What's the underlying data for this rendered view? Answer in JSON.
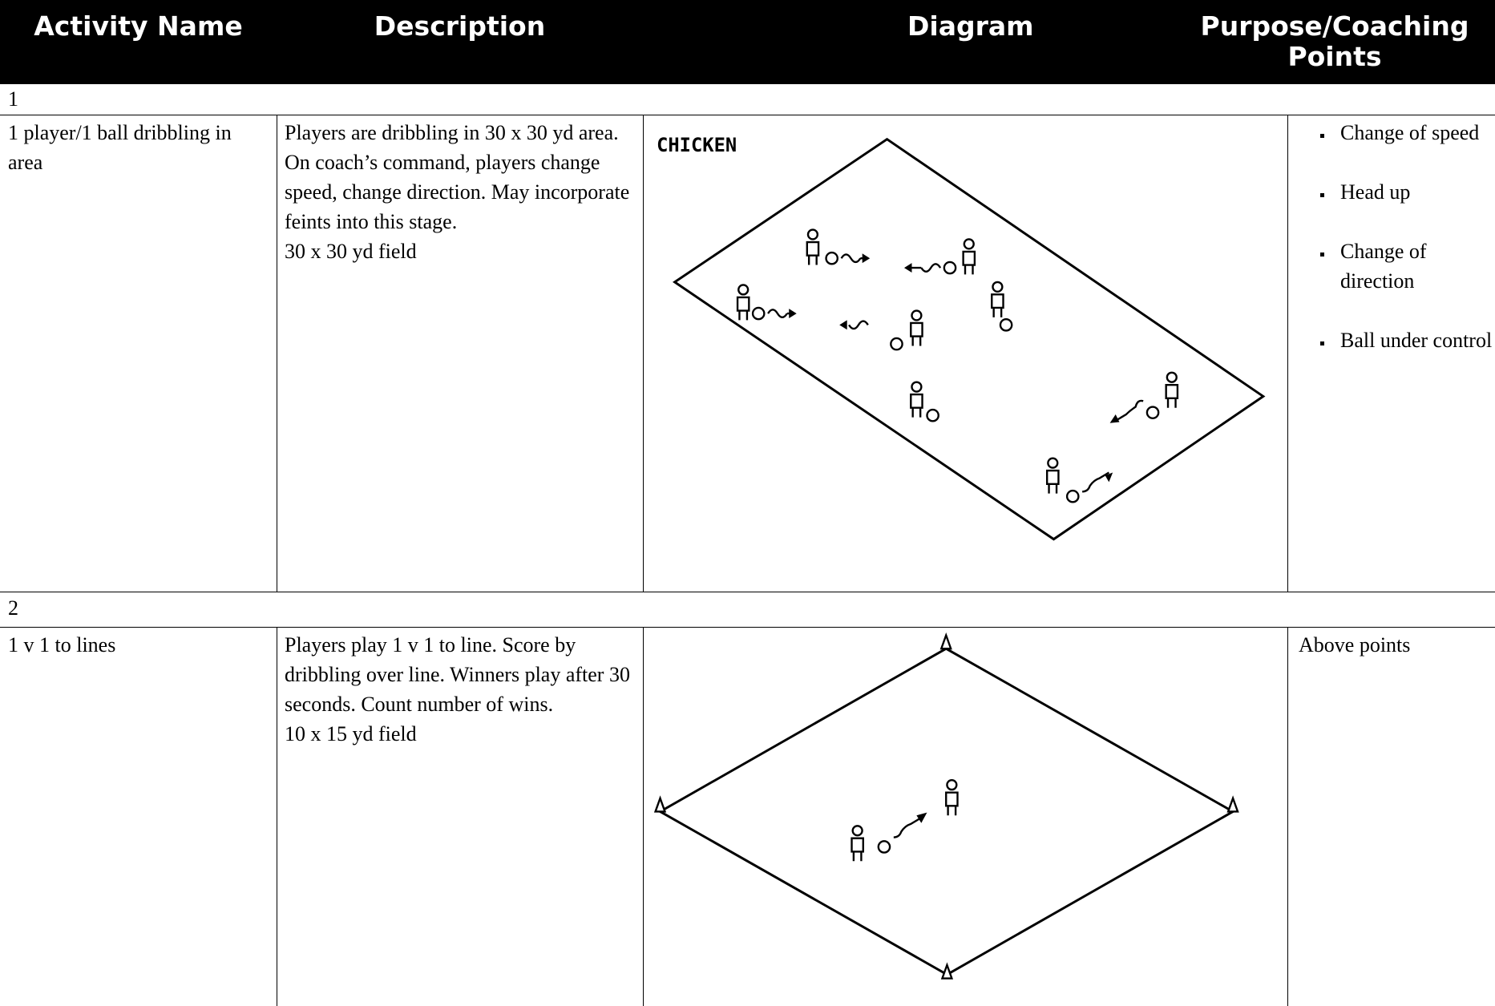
{
  "header": {
    "columns": [
      "Activity Name",
      "Description",
      "Diagram",
      "Purpose/Coaching Points"
    ]
  },
  "sections": [
    {
      "number": "1",
      "activity": "1 player/1 ball dribbling in area",
      "description": [
        "Players are dribbling in 30 x 30 yd area. On coach’s command, players change speed, change direction. May incorporate feints into this stage.",
        "30 x 30 yd field"
      ],
      "diagram_label": "CHICKEN",
      "points": [
        "Change of speed",
        "Head up",
        "Change of direction",
        "Ball under control"
      ]
    },
    {
      "number": "2",
      "activity": "1 v 1 to lines",
      "description": [
        "Players play 1 v 1 to line. Score by dribbling over line. Winners play after 30 seconds. Count number of wins.",
        "10 x 15 yd field"
      ],
      "points_text": "Above points"
    }
  ]
}
